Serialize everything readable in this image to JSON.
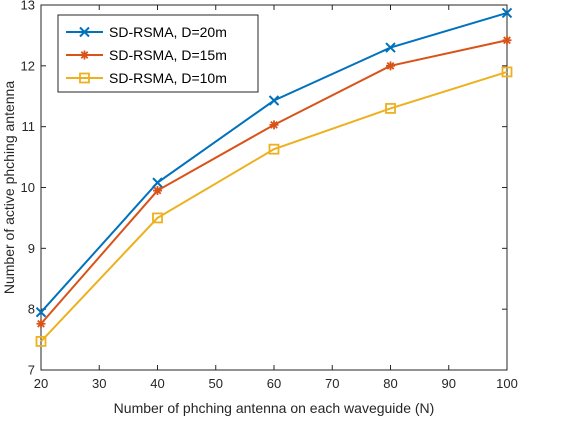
{
  "chart_data": {
    "type": "line",
    "xlabel": "Number of phching antenna on each waveguide (N)",
    "ylabel": "Number of active phching antenna",
    "x": [
      20,
      40,
      60,
      80,
      100
    ],
    "xlim": [
      20,
      100
    ],
    "ylim": [
      7,
      13
    ],
    "xticks": [
      "20",
      "30",
      "40",
      "50",
      "60",
      "70",
      "80",
      "90",
      "100"
    ],
    "yticks": [
      "7",
      "8",
      "9",
      "10",
      "11",
      "12",
      "13"
    ],
    "grid": false,
    "legend_position": "top-left",
    "series": [
      {
        "name": "SD-RSMA, D=20m",
        "values": [
          7.95,
          10.08,
          11.43,
          12.3,
          12.87
        ],
        "color": "#0072BD",
        "marker": "x"
      },
      {
        "name": "SD-RSMA, D=15m",
        "values": [
          7.76,
          9.95,
          11.03,
          12.0,
          12.42
        ],
        "color": "#D95319",
        "marker": "asterisk"
      },
      {
        "name": "SD-RSMA, D=10m",
        "values": [
          7.47,
          9.5,
          10.63,
          11.3,
          11.9
        ],
        "color": "#EDB120",
        "marker": "square"
      }
    ]
  }
}
